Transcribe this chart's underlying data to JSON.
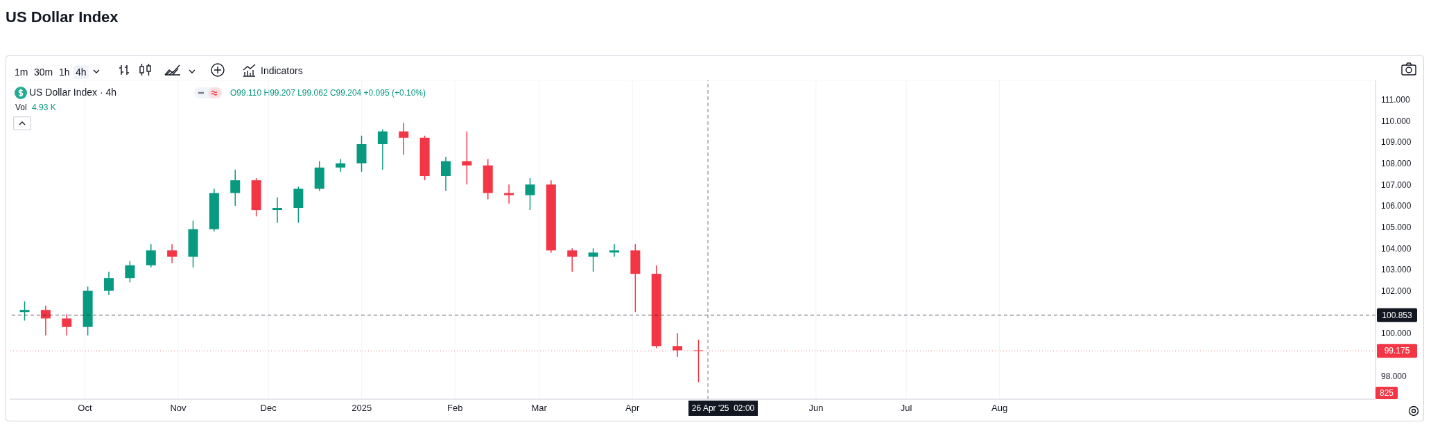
{
  "chart_data": {
    "type": "candlestick",
    "title": "US Dollar Index",
    "x": [
      "2024-09-11",
      "2024-09-18",
      "2024-09-25",
      "2024-10-02",
      "2024-10-09",
      "2024-10-16",
      "2024-10-23",
      "2024-10-30",
      "2024-11-06",
      "2024-11-13",
      "2024-11-20",
      "2024-11-27",
      "2024-12-04",
      "2024-12-11",
      "2024-12-18",
      "2024-12-25",
      "2025-01-01",
      "2025-01-08",
      "2025-01-15",
      "2025-01-22",
      "2025-01-29",
      "2025-02-05",
      "2025-02-12",
      "2025-02-19",
      "2025-02-26",
      "2025-03-05",
      "2025-03-12",
      "2025-03-19",
      "2025-03-26",
      "2025-04-02",
      "2025-04-09",
      "2025-04-16",
      "2025-04-23"
    ],
    "ohlc": [
      [
        101.0,
        101.5,
        100.6,
        101.1
      ],
      [
        101.1,
        101.3,
        99.9,
        100.7
      ],
      [
        100.7,
        100.9,
        99.9,
        100.3
      ],
      [
        100.3,
        102.2,
        99.9,
        102.0
      ],
      [
        102.0,
        102.9,
        101.8,
        102.6
      ],
      [
        102.6,
        103.4,
        102.4,
        103.2
      ],
      [
        103.2,
        104.2,
        103.1,
        103.9
      ],
      [
        103.9,
        104.2,
        103.3,
        103.6
      ],
      [
        103.6,
        105.3,
        103.1,
        104.9
      ],
      [
        104.9,
        106.8,
        104.8,
        106.6
      ],
      [
        106.6,
        107.7,
        106.0,
        107.2
      ],
      [
        107.2,
        107.3,
        105.5,
        105.8
      ],
      [
        105.8,
        106.4,
        105.2,
        105.9
      ],
      [
        105.9,
        106.9,
        105.2,
        106.8
      ],
      [
        106.8,
        108.1,
        106.7,
        107.8
      ],
      [
        107.8,
        108.2,
        107.6,
        108.0
      ],
      [
        108.0,
        109.3,
        107.6,
        108.9
      ],
      [
        108.9,
        109.6,
        107.7,
        109.5
      ],
      [
        109.5,
        109.9,
        108.4,
        109.2
      ],
      [
        109.2,
        109.3,
        107.2,
        107.4
      ],
      [
        107.4,
        108.3,
        106.7,
        108.1
      ],
      [
        108.1,
        109.5,
        107.0,
        107.9
      ],
      [
        107.9,
        108.2,
        106.3,
        106.6
      ],
      [
        106.6,
        107.0,
        106.1,
        106.5
      ],
      [
        106.5,
        107.3,
        105.8,
        107.0
      ],
      [
        107.0,
        107.2,
        103.8,
        103.9
      ],
      [
        103.9,
        104.0,
        102.9,
        103.6
      ],
      [
        103.6,
        104.0,
        102.9,
        103.8
      ],
      [
        103.8,
        104.2,
        103.6,
        103.9
      ],
      [
        103.9,
        104.2,
        101.0,
        102.8
      ],
      [
        102.8,
        103.2,
        99.3,
        99.4
      ],
      [
        99.4,
        100.0,
        98.9,
        99.2
      ],
      [
        99.2,
        99.7,
        97.7,
        99.2
      ]
    ],
    "colors": [
      "#089981",
      "#f23645",
      "#f23645",
      "#089981",
      "#089981",
      "#089981",
      "#089981",
      "#f23645",
      "#089981",
      "#089981",
      "#089981",
      "#f23645",
      "#089981",
      "#089981",
      "#089981",
      "#089981",
      "#089981",
      "#089981",
      "#f23645",
      "#f23645",
      "#089981",
      "#f23645",
      "#f23645",
      "#f23645",
      "#089981",
      "#f23645",
      "#f23645",
      "#089981",
      "#089981",
      "#f23645",
      "#f23645",
      "#f23645",
      "#f23645"
    ],
    "xlim": [
      "2024-09-06",
      "2025-12-04"
    ],
    "xticks": [
      {
        "value": "2024-10-01",
        "label": "Oct"
      },
      {
        "value": "2024-11-01",
        "label": "Nov"
      },
      {
        "value": "2024-12-01",
        "label": "Dec"
      },
      {
        "value": "2025-01-01",
        "label": "2025"
      },
      {
        "value": "2025-02-01",
        "label": "Feb"
      },
      {
        "value": "2025-03-01",
        "label": "Mar"
      },
      {
        "value": "2025-04-01",
        "label": "Apr"
      },
      {
        "value": "2025-06-01",
        "label": "Jun"
      },
      {
        "value": "2025-07-01",
        "label": "Jul"
      },
      {
        "value": "2025-08-01",
        "label": "Aug"
      }
    ],
    "ylim": [
      96.9,
      111.9
    ],
    "yticks": [
      {
        "value": 98,
        "label": "98.000"
      },
      {
        "value": 100,
        "label": "100.000"
      },
      {
        "value": 102,
        "label": "102.000"
      },
      {
        "value": 103,
        "label": "103.000"
      },
      {
        "value": 104,
        "label": "104.000"
      },
      {
        "value": 105,
        "label": "105.000"
      },
      {
        "value": 106,
        "label": "106.000"
      },
      {
        "value": 107,
        "label": "107.000"
      },
      {
        "value": 108,
        "label": "108.000"
      },
      {
        "value": 109,
        "label": "109.000"
      },
      {
        "value": 110,
        "label": "110.000"
      },
      {
        "value": 111,
        "label": "111.000"
      }
    ],
    "ref_lines": [
      {
        "axis": "y",
        "value": 100.853,
        "label": "100.853",
        "color": "#131722",
        "line_style": "dashed"
      },
      {
        "axis": "y",
        "value": 99.175,
        "label": "99.175",
        "color": "#f23645",
        "line_style": "dotted"
      },
      {
        "axis": "x",
        "value": "2025-04-26T02:00",
        "label": "26 Apr '25  02:00",
        "color": "#131722",
        "line_style": "dashed"
      }
    ],
    "annotations": [
      "1m",
      "30m",
      "1h",
      "4h",
      "Indicators",
      "US Dollar Index · 4h",
      "O99.110 H99.207 L99.062 C99.204 +0.095 (+0.10%)",
      "Vol",
      "4.93 K",
      "825"
    ],
    "grid": true
  }
}
